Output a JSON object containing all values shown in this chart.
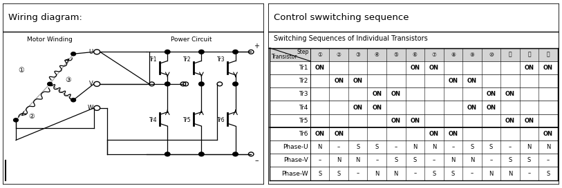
{
  "title_left": "Wiring diagram:",
  "title_right": "Control swwitching sequence",
  "subtitle_right": "Switching Sequences of Individual Transistors",
  "bg_color": "#ffffff",
  "steps": [
    "①",
    "②",
    "③",
    "④",
    "⑤",
    "⑥",
    "⑦",
    "⑧",
    "⑨",
    "⑩",
    "⑪",
    "⑫",
    "⑬"
  ],
  "transistors": [
    "Tr1",
    "Tr2",
    "Tr3",
    "Tr4",
    "Tr5",
    "Tr6",
    "Phase-U",
    "Phase-V",
    "Phase-W"
  ],
  "table_data": [
    [
      "ON",
      "",
      "",
      "",
      "",
      "ON",
      "ON",
      "",
      "",
      "",
      "",
      "ON",
      "ON"
    ],
    [
      "",
      "ON",
      "ON",
      "",
      "",
      "",
      "",
      "ON",
      "ON",
      "",
      "",
      "",
      ""
    ],
    [
      "",
      "",
      "",
      "ON",
      "ON",
      "",
      "",
      "",
      "",
      "ON",
      "ON",
      "",
      ""
    ],
    [
      "",
      "",
      "ON",
      "ON",
      "",
      "",
      "",
      "",
      "ON",
      "ON",
      "",
      "",
      ""
    ],
    [
      "",
      "",
      "",
      "",
      "ON",
      "ON",
      "",
      "",
      "",
      "",
      "ON",
      "ON",
      ""
    ],
    [
      "ON",
      "ON",
      "",
      "",
      "",
      "",
      "ON",
      "ON",
      "",
      "",
      "",
      "",
      "ON"
    ],
    [
      "N",
      "–",
      "S",
      "S",
      "–",
      "N",
      "N",
      "–",
      "S",
      "S",
      "–",
      "N",
      "N"
    ],
    [
      "–",
      "N",
      "N",
      "–",
      "S",
      "S",
      "–",
      "N",
      "N",
      "–",
      "S",
      "S",
      "–"
    ],
    [
      "S",
      "S",
      "–",
      "N",
      "N",
      "–",
      "S",
      "S",
      "–",
      "N",
      "N",
      "–",
      "S"
    ]
  ],
  "divider_after_row": 5,
  "title_fontsize": 9.5,
  "subtitle_fontsize": 7,
  "cell_fontsize": 6,
  "label_fontsize": 6.5
}
